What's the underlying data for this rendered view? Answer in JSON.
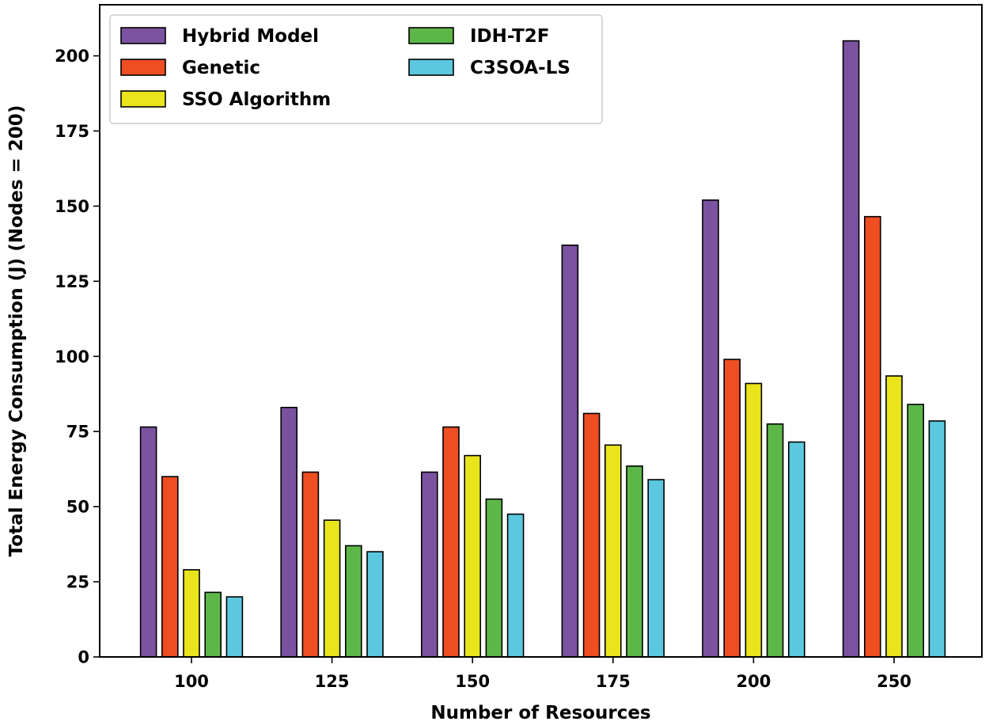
{
  "chart_data": {
    "type": "bar",
    "title": "",
    "xlabel": "Number of Resources",
    "ylabel": "Total Energy Consumption (J) (Nodes = 200)",
    "categories": [
      "100",
      "125",
      "150",
      "175",
      "200",
      "250"
    ],
    "ylim": [
      0,
      217
    ],
    "yticks": [
      0,
      25,
      50,
      75,
      100,
      125,
      150,
      175,
      200
    ],
    "grid": false,
    "legend_position": "top-left",
    "series": [
      {
        "name": "Hybrid Model",
        "color": "#7b52a0",
        "values": [
          76.5,
          83,
          61.5,
          137,
          152,
          205
        ]
      },
      {
        "name": "Genetic",
        "color": "#ee4e22",
        "values": [
          60,
          61.5,
          76.5,
          81,
          99,
          146.5
        ]
      },
      {
        "name": "SSO Algorithm",
        "color": "#e9e41c",
        "values": [
          29,
          45.5,
          67,
          70.5,
          91,
          93.5
        ]
      },
      {
        "name": "IDH-T2F",
        "color": "#5cb748",
        "values": [
          21.5,
          37,
          52.5,
          63.5,
          77.5,
          84
        ]
      },
      {
        "name": "C3SOA-LS",
        "color": "#5bc8df",
        "values": [
          20,
          35,
          47.5,
          59,
          71.5,
          78.5
        ]
      }
    ]
  }
}
